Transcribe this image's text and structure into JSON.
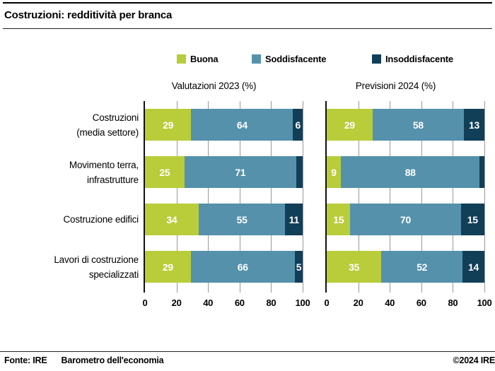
{
  "title": "Costruzioni: redditività per branca",
  "footer": {
    "source_label": "Fonte: IRE",
    "source_name": "Barometro dell'economia",
    "copyright": "©2024 IRE"
  },
  "chart_data": {
    "type": "bar",
    "orientation": "horizontal-stacked",
    "title": "Costruzioni: redditività per branca",
    "categories": [
      "Costruzioni\n(media settore)",
      "Movimento terra,\ninfrastrutture",
      "Costruzione edifici",
      "Lavori di costruzione\nspecializzati"
    ],
    "legend": [
      "Buona",
      "Soddisfacente",
      "Insoddisfacente"
    ],
    "xticks": [
      "0",
      "20",
      "40",
      "60",
      "80",
      "100"
    ],
    "xlim": [
      0,
      100
    ],
    "grid": true,
    "panels": [
      {
        "title": "Valutazioni 2023 (%)",
        "series": [
          {
            "name": "Buona",
            "values": [
              29,
              25,
              34,
              29
            ],
            "labels": [
              "29",
              "25",
              "34",
              "29"
            ]
          },
          {
            "name": "Soddisfacente",
            "values": [
              64,
              71,
              55,
              66
            ],
            "labels": [
              "64",
              "71",
              "55",
              "66"
            ]
          },
          {
            "name": "Insoddisfacente",
            "values": [
              6,
              4,
              11,
              5
            ],
            "labels": [
              "6",
              "",
              "11",
              "5"
            ]
          }
        ]
      },
      {
        "title": "Previsioni 2024 (%)",
        "series": [
          {
            "name": "Buona",
            "values": [
              29,
              9,
              15,
              35
            ],
            "labels": [
              "29",
              "9",
              "15",
              "35"
            ]
          },
          {
            "name": "Soddisfacente",
            "values": [
              58,
              88,
              70,
              52
            ],
            "labels": [
              "58",
              "88",
              "70",
              "52"
            ]
          },
          {
            "name": "Insoddisfacente",
            "values": [
              13,
              3,
              15,
              14
            ],
            "labels": [
              "13",
              "",
              "15",
              "14"
            ]
          }
        ]
      }
    ],
    "colors": {
      "buona": "#b9cc3a",
      "soddisfacente": "#5591ab",
      "insoddisfacente": "#123f58",
      "grid": "#999999",
      "axis": "#111111"
    }
  }
}
